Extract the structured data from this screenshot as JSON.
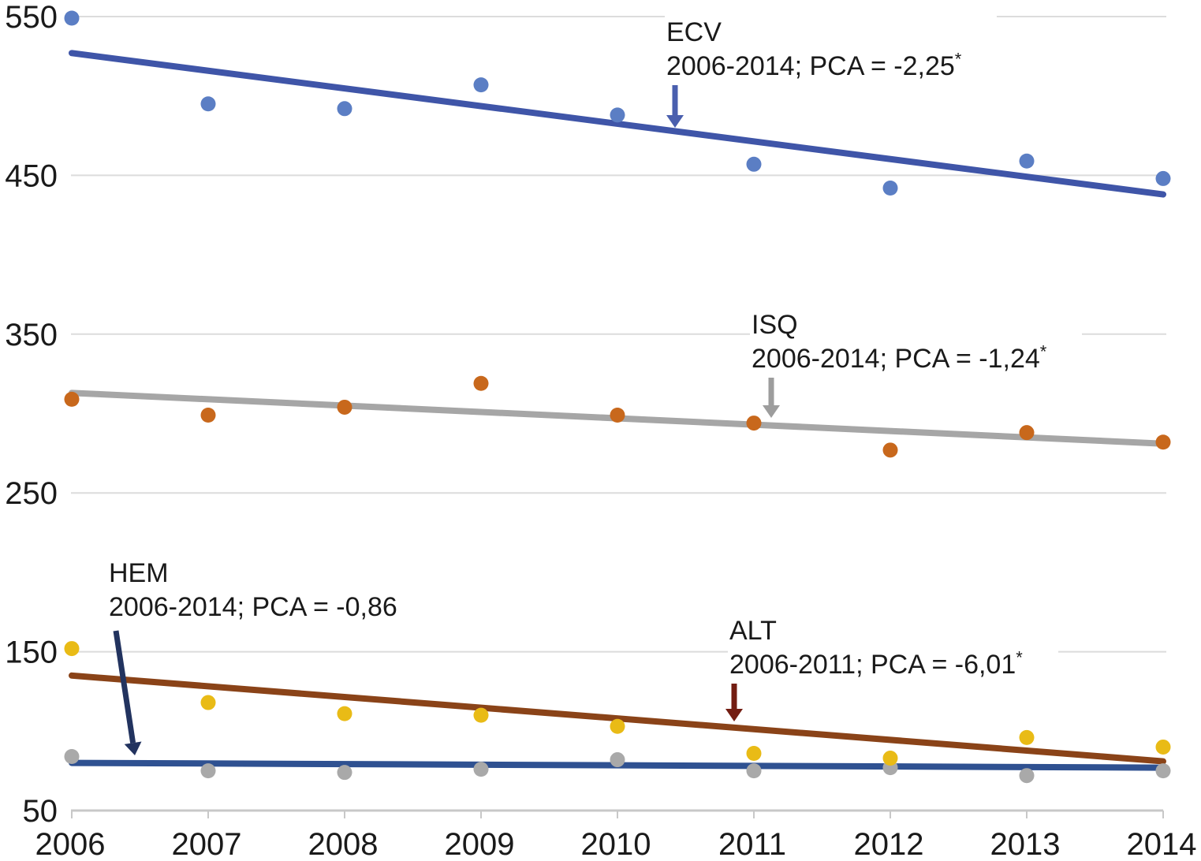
{
  "chart_data": {
    "type": "scatter",
    "title": "",
    "xlabel": "",
    "ylabel": "",
    "x": [
      2006,
      2007,
      2008,
      2009,
      2010,
      2011,
      2012,
      2013,
      2014
    ],
    "x_tick_labels": [
      "2006",
      "2007",
      "2008",
      "2009",
      "2010",
      "2011",
      "2012",
      "2013",
      "2014"
    ],
    "y_ticks": [
      550,
      450,
      350,
      250,
      150,
      50
    ],
    "y_tick_labels": [
      "550",
      "450",
      "350",
      "250",
      "150",
      "50"
    ],
    "ylim": [
      50,
      550
    ],
    "grid": true,
    "legend_position": "none",
    "colors": {
      "gridline": "#dcdcdc",
      "axis": "#c8c8c8",
      "text": "#1a1a1a",
      "background": "#ffffff"
    },
    "series": [
      {
        "name": "ECV",
        "point_color": "#5b7ec4",
        "values": [
          549,
          495,
          492,
          507,
          488,
          457,
          442,
          459,
          448
        ],
        "trend": {
          "start_value": 527,
          "end_value": 438,
          "color": "#3f55a8"
        }
      },
      {
        "name": "ISQ",
        "point_color": "#c8681c",
        "values": [
          309,
          299,
          304,
          319,
          299,
          294,
          277,
          288,
          282
        ],
        "trend": {
          "start_value": 313,
          "end_value": 281,
          "color": "#a6a6a6"
        }
      },
      {
        "name": "ALT",
        "point_color": "#e9bb16",
        "values": [
          152,
          118,
          111,
          110,
          103,
          86,
          83,
          96,
          90
        ],
        "trend": {
          "start_value": 135,
          "end_value": 81,
          "color": "#8a4318"
        }
      },
      {
        "name": "HEM",
        "point_color": "#a9a9a9",
        "values": [
          84,
          75,
          74,
          76,
          82,
          75,
          77,
          72,
          75
        ],
        "trend": {
          "start_value": 80,
          "end_value": 77,
          "color": "#2f5191"
        }
      }
    ],
    "annotations": [
      {
        "id": "ecv",
        "line1": "ECV",
        "line2": "2006-2014; PCA = -2,25",
        "asterisk": "*",
        "arrow_color": "#4a5fae"
      },
      {
        "id": "isq",
        "line1": "ISQ",
        "line2": "2006-2014; PCA = -1,24",
        "asterisk": "*",
        "arrow_color": "#9d9d9d"
      },
      {
        "id": "hem",
        "line1": "HEM",
        "line2": "2006-2014; PCA = -0,86",
        "asterisk": "",
        "arrow_color": "#22335f"
      },
      {
        "id": "alt",
        "line1": "ALT",
        "line2": "2006-2011; PCA = -6,01",
        "asterisk": "*",
        "arrow_color": "#731d12"
      }
    ]
  }
}
